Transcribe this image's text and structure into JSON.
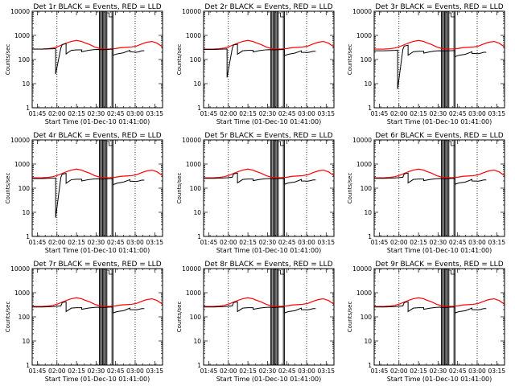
{
  "chart_data": {
    "type": "line",
    "layout": "3x3 grid of log-scale time series",
    "xlabel": "Start Time (01-Dec-10 01:41:00)",
    "ylabel": "Counts/sec",
    "x_ticks_min": [
      4,
      19,
      34,
      49,
      64,
      79,
      94
    ],
    "x_tick_labels": [
      "01:45",
      "02:00",
      "02:15",
      "02:30",
      "02:45",
      "03:00",
      "03:15"
    ],
    "xlim_min": [
      0,
      100
    ],
    "ylim": [
      1,
      10000
    ],
    "yscale": "log",
    "y_tick_labels": [
      "1",
      "10",
      "100",
      "1000",
      "10000"
    ],
    "dotted_vlines_min": [
      19,
      79
    ],
    "solid_vlines_min": [
      [
        51.5,
        52.3
      ],
      [
        53.2,
        54.0
      ],
      [
        54.8,
        55.6
      ],
      [
        56.6,
        57.3
      ],
      [
        61.2,
        62.0
      ]
    ],
    "legend": {
      "black": "Events",
      "red": "LLD"
    },
    "red_series": {
      "name": "LLD",
      "x_min": [
        0,
        8,
        12,
        16,
        20,
        24,
        28,
        30,
        34,
        38,
        40,
        44,
        48,
        52,
        56,
        60,
        64,
        68,
        72,
        76,
        80,
        84,
        88,
        92,
        96,
        100
      ],
      "y": [
        270,
        272,
        280,
        300,
        350,
        430,
        520,
        560,
        620,
        560,
        500,
        420,
        330,
        285,
        270,
        275,
        285,
        310,
        320,
        330,
        360,
        440,
        520,
        560,
        470,
        330
      ]
    },
    "panels": [
      {
        "title": "Det 1r BLACK = Events, RED = LLD",
        "black_x_min": [
          0,
          8,
          12,
          16,
          18,
          18,
          22,
          23,
          26,
          26,
          30,
          34,
          38,
          38,
          43,
          47,
          50,
          54,
          58,
          62,
          62,
          65,
          70,
          75,
          75,
          80,
          82,
          84,
          86
        ],
        "black_y": [
          270,
          270,
          275,
          280,
          285,
          25,
          300,
          420,
          450,
          170,
          240,
          250,
          250,
          210,
          240,
          255,
          260,
          255,
          260,
          270,
          150,
          170,
          190,
          240,
          210,
          200,
          210,
          230,
          230
        ]
      },
      {
        "title": "Det 2r BLACK = Events, RED = LLD",
        "black_x_min": [
          0,
          8,
          12,
          16,
          18,
          18,
          22,
          23,
          26,
          26,
          30,
          34,
          38,
          38,
          43,
          47,
          50,
          54,
          58,
          62,
          62,
          65,
          70,
          75,
          75,
          80,
          82,
          84,
          86
        ],
        "black_y": [
          260,
          260,
          265,
          270,
          275,
          18,
          290,
          400,
          430,
          165,
          230,
          240,
          240,
          205,
          235,
          250,
          255,
          250,
          255,
          260,
          145,
          165,
          185,
          230,
          200,
          195,
          205,
          220,
          220
        ]
      },
      {
        "title": "Det 3r BLACK = Events, RED = LLD",
        "black_x_min": [
          0,
          8,
          12,
          16,
          18,
          18,
          22,
          23,
          26,
          26,
          30,
          34,
          38,
          38,
          43,
          47,
          50,
          54,
          58,
          62,
          62,
          65,
          70,
          75,
          75,
          80,
          82,
          84,
          86
        ],
        "black_y": [
          230,
          230,
          235,
          240,
          245,
          6,
          260,
          360,
          390,
          150,
          210,
          220,
          220,
          185,
          210,
          225,
          230,
          225,
          230,
          235,
          130,
          150,
          165,
          210,
          180,
          175,
          185,
          200,
          200
        ]
      },
      {
        "title": "Det 4r BLACK = Events, RED = LLD",
        "black_x_min": [
          0,
          8,
          12,
          16,
          18,
          18,
          22,
          23,
          26,
          26,
          30,
          34,
          38,
          38,
          43,
          47,
          50,
          54,
          58,
          62,
          62,
          65,
          70,
          75,
          75,
          80,
          82,
          84,
          86
        ],
        "black_y": [
          250,
          250,
          255,
          260,
          265,
          6,
          280,
          380,
          410,
          160,
          225,
          235,
          235,
          200,
          225,
          240,
          245,
          240,
          245,
          250,
          140,
          160,
          180,
          225,
          195,
          190,
          200,
          215,
          215
        ]
      },
      {
        "title": "Det 5r BLACK = Events, RED = LLD",
        "black_x_min": [
          0,
          8,
          12,
          16,
          18,
          18,
          22,
          23,
          26,
          26,
          30,
          34,
          38,
          38,
          43,
          47,
          50,
          54,
          58,
          62,
          62,
          65,
          70,
          75,
          75,
          80,
          82,
          84,
          86
        ],
        "black_y": [
          255,
          255,
          260,
          265,
          270,
          270,
          285,
          390,
          420,
          165,
          230,
          240,
          240,
          205,
          230,
          245,
          250,
          245,
          250,
          255,
          145,
          165,
          180,
          230,
          200,
          195,
          205,
          220,
          220
        ]
      },
      {
        "title": "Det 6r BLACK = Events, RED = LLD",
        "black_x_min": [
          0,
          8,
          12,
          16,
          18,
          18,
          22,
          23,
          26,
          26,
          30,
          34,
          38,
          38,
          43,
          47,
          50,
          54,
          58,
          62,
          62,
          65,
          70,
          75,
          75,
          80,
          82,
          84,
          86
        ],
        "black_y": [
          255,
          255,
          260,
          265,
          270,
          270,
          285,
          390,
          420,
          165,
          230,
          240,
          240,
          205,
          230,
          245,
          250,
          245,
          250,
          255,
          145,
          165,
          180,
          230,
          200,
          195,
          205,
          220,
          220
        ]
      },
      {
        "title": "Det 7r BLACK = Events, RED = LLD",
        "black_x_min": [
          0,
          8,
          12,
          16,
          18,
          18,
          22,
          23,
          26,
          26,
          30,
          34,
          38,
          38,
          43,
          47,
          50,
          54,
          58,
          62,
          62,
          65,
          70,
          75,
          75,
          80,
          82,
          84,
          86
        ],
        "black_y": [
          255,
          255,
          260,
          265,
          270,
          270,
          285,
          390,
          420,
          165,
          230,
          240,
          240,
          205,
          230,
          245,
          250,
          245,
          250,
          255,
          145,
          165,
          180,
          230,
          200,
          195,
          205,
          220,
          220
        ]
      },
      {
        "title": "Det 8r BLACK = Events, RED = LLD",
        "black_x_min": [
          0,
          8,
          12,
          16,
          18,
          18,
          22,
          23,
          26,
          26,
          30,
          34,
          38,
          38,
          43,
          47,
          50,
          54,
          58,
          62,
          62,
          65,
          70,
          75,
          75,
          80,
          82,
          84,
          86
        ],
        "black_y": [
          255,
          255,
          260,
          265,
          270,
          270,
          285,
          390,
          420,
          165,
          230,
          240,
          240,
          205,
          230,
          245,
          250,
          245,
          250,
          255,
          145,
          165,
          180,
          230,
          200,
          195,
          205,
          220,
          220
        ]
      },
      {
        "title": "Det 9r BLACK = Events, RED = LLD",
        "black_x_min": [
          0,
          8,
          12,
          16,
          18,
          18,
          22,
          23,
          26,
          26,
          30,
          34,
          38,
          38,
          43,
          47,
          50,
          54,
          58,
          62,
          62,
          65,
          70,
          75,
          75,
          80,
          82,
          84,
          86
        ],
        "black_y": [
          255,
          255,
          260,
          265,
          270,
          270,
          285,
          390,
          420,
          165,
          230,
          240,
          240,
          205,
          230,
          245,
          250,
          245,
          250,
          255,
          145,
          165,
          180,
          230,
          200,
          195,
          205,
          220,
          220
        ]
      }
    ]
  },
  "colors": {
    "events": "#000000",
    "lld": "#ff0000",
    "background": "#ffffff",
    "axis": "#000000"
  }
}
